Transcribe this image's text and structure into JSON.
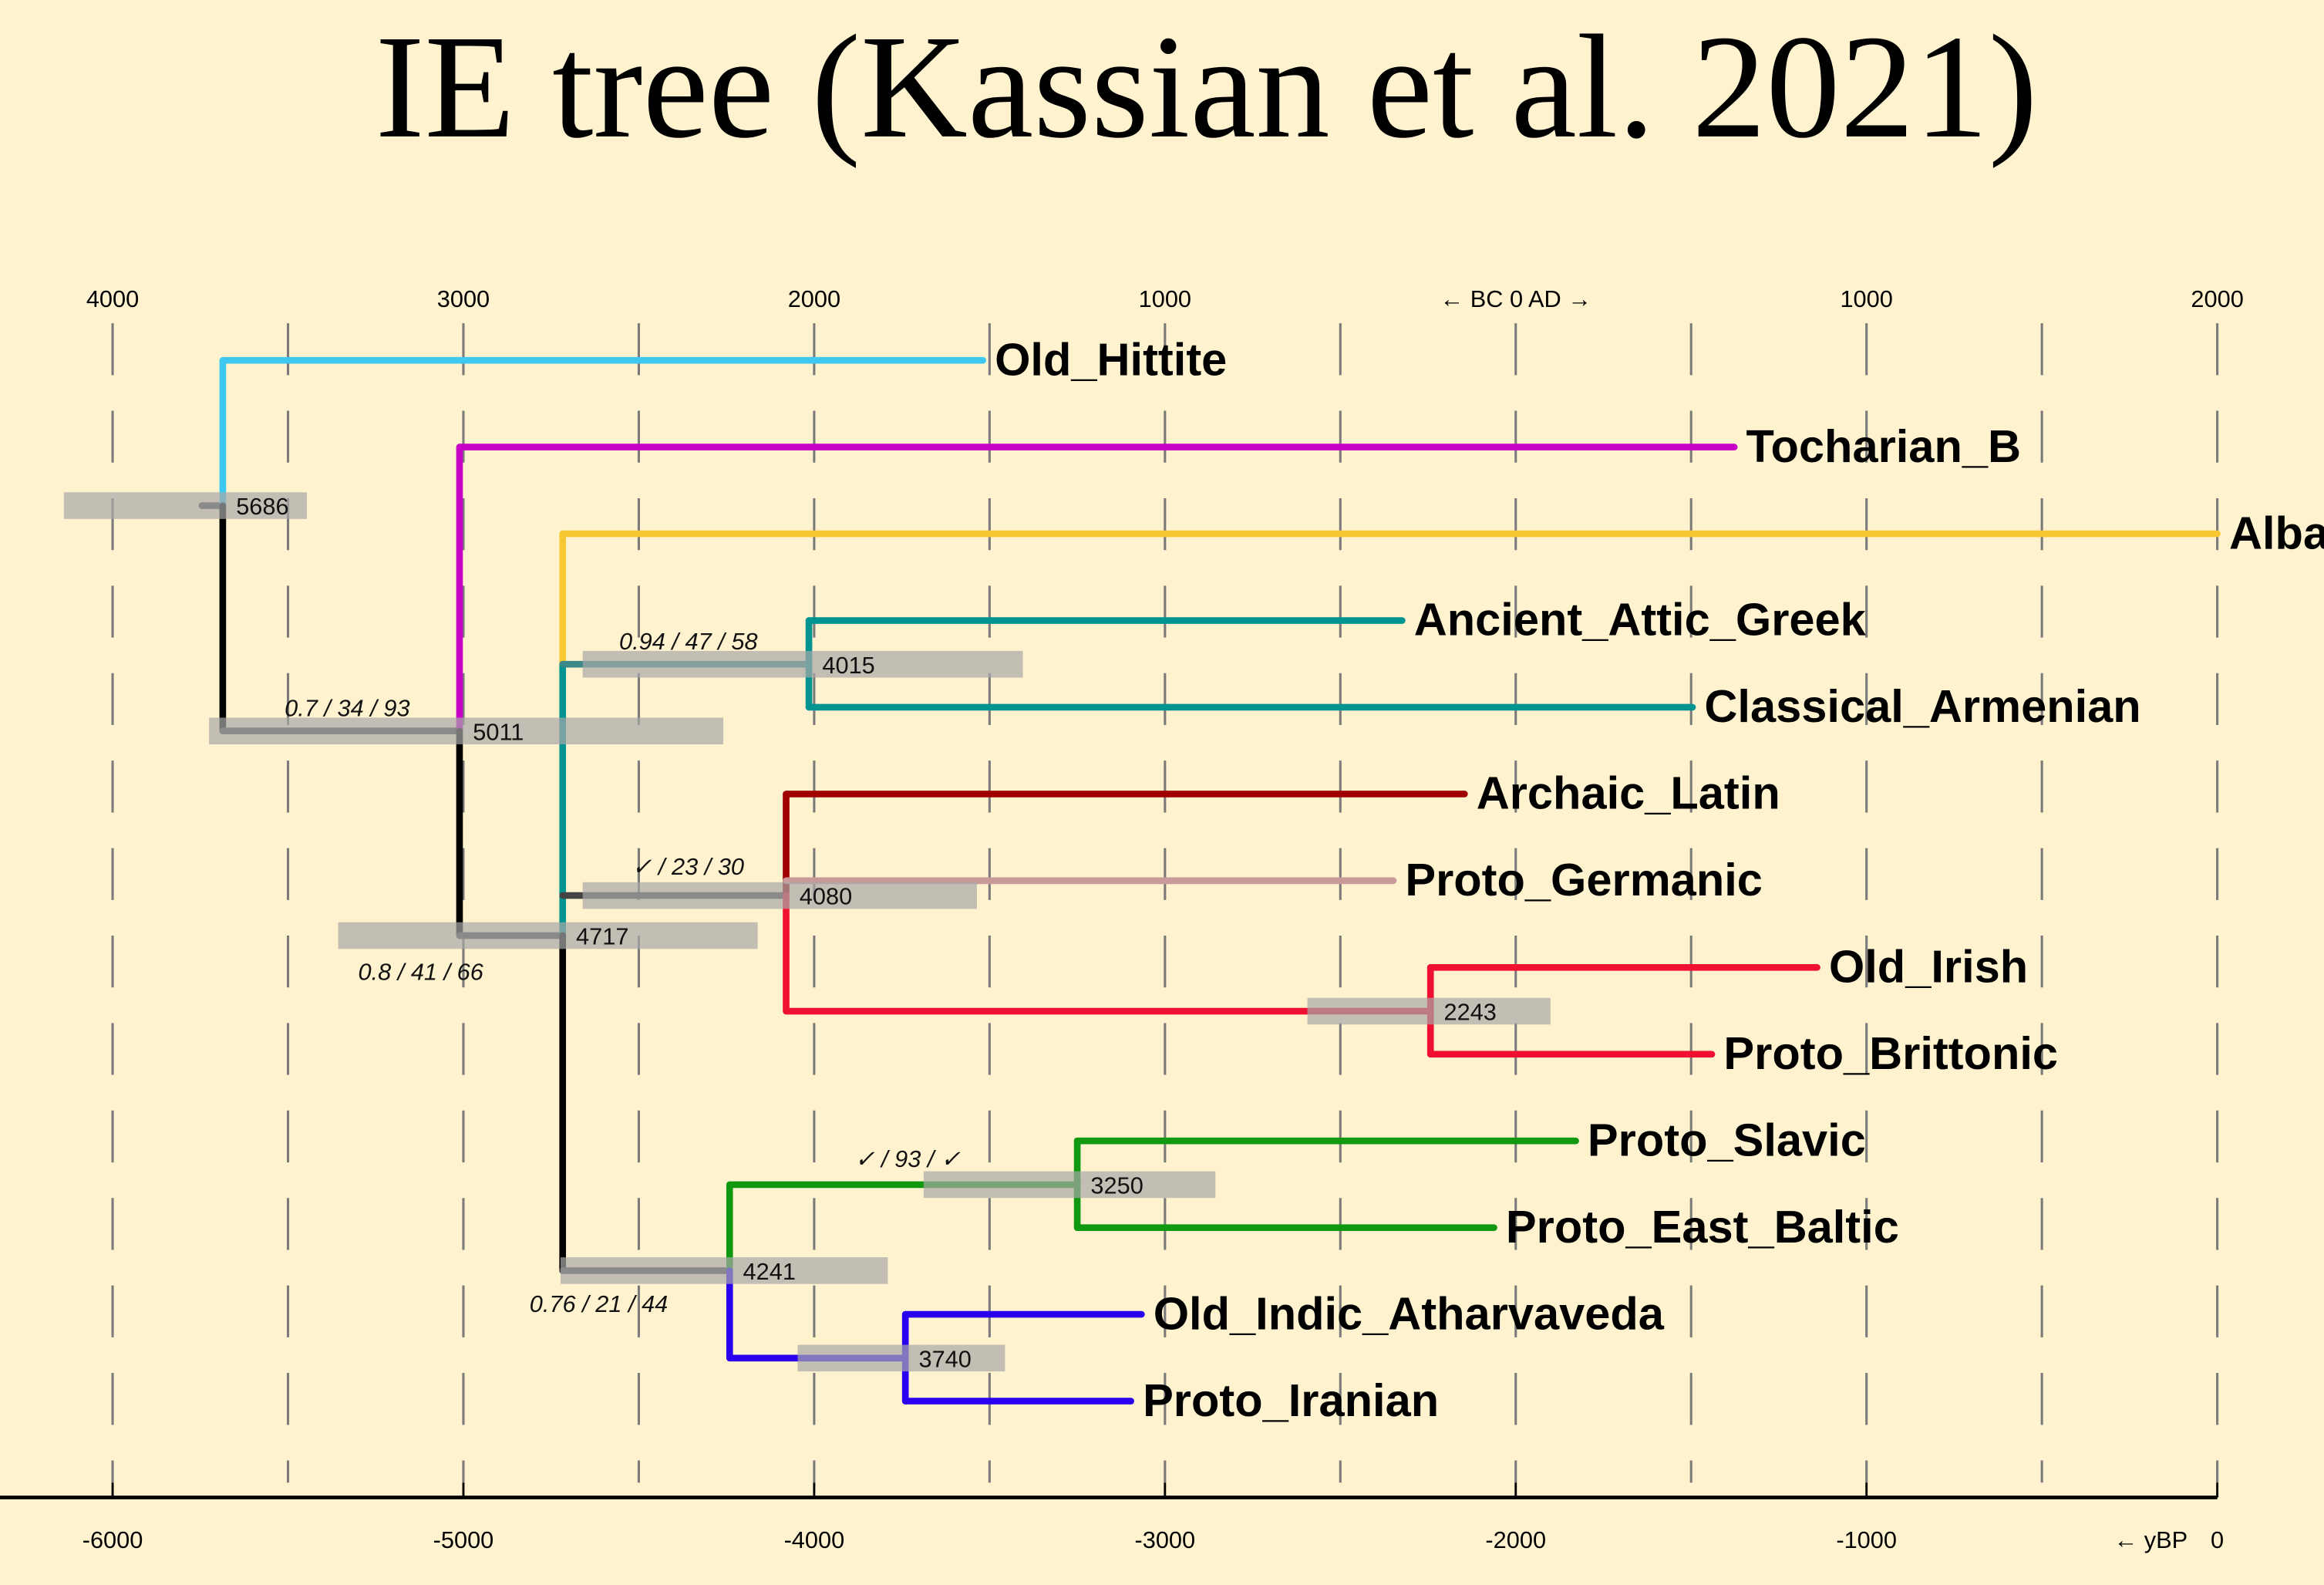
{
  "chart_data": {
    "type": "tree",
    "title": "IE tree (Kassian et al. 2021)",
    "x_axis_bottom": {
      "ticks": [
        -6000,
        -5000,
        -4000,
        -3000,
        -2000,
        -1000,
        0
      ],
      "tick_labels": [
        "-6000",
        "-5000",
        "-4000",
        "-3000",
        "-2000",
        "-1000",
        "0"
      ],
      "label": "← yBP"
    },
    "x_axis_top": {
      "labels": [
        {
          "at": -6000,
          "text": "4000"
        },
        {
          "at": -5000,
          "text": "3000"
        },
        {
          "at": -4000,
          "text": "2000"
        },
        {
          "at": -3000,
          "text": "1000"
        },
        {
          "at": -2000,
          "text": "←  BC    0    AD  →"
        },
        {
          "at": -1000,
          "text": "1000"
        },
        {
          "at": 0,
          "text": "2000"
        }
      ]
    },
    "xlim": [
      -6300,
      300
    ],
    "grid": "dashed vertical every 500 years",
    "leaves": [
      {
        "name": "Old_Hittite",
        "tip": -3519,
        "color": "#3ec8f0"
      },
      {
        "name": "Tocharian_B",
        "tip": -1377,
        "color": "#c800c8"
      },
      {
        "name": "Albanian",
        "tip": 0,
        "color": "#f8c832"
      },
      {
        "name": "Ancient_Attic_Greek",
        "tip": -2324,
        "color": "#009490"
      },
      {
        "name": "Classical_Armenian",
        "tip": -1496,
        "color": "#009490"
      },
      {
        "name": "Archaic_Latin",
        "tip": -2146,
        "color": "#a00000"
      },
      {
        "name": "Proto_Germanic",
        "tip": -2349,
        "color": "#c89a9a"
      },
      {
        "name": "Old_Irish",
        "tip": -1141,
        "color": "#f01030"
      },
      {
        "name": "Proto_Brittonic",
        "tip": -1441,
        "color": "#f01030"
      },
      {
        "name": "Proto_Slavic",
        "tip": -1829,
        "color": "#109810"
      },
      {
        "name": "Proto_East_Baltic",
        "tip": -2062,
        "color": "#109810"
      },
      {
        "name": "Old_Indic_Atharvaveda",
        "tip": -3067,
        "color": "#2a00f0"
      },
      {
        "name": "Proto_Iranian",
        "tip": -3097,
        "color": "#2a00f0"
      }
    ],
    "nodes": [
      {
        "id": "n5686",
        "age": 5686,
        "label": "5686",
        "hpd": [
          -6139,
          -5446
        ],
        "support": ""
      },
      {
        "id": "n5011",
        "age": 5011,
        "label": "5011",
        "hpd": [
          -5725,
          -4259
        ],
        "support": "0.7 / 34 / 93"
      },
      {
        "id": "n4717",
        "age": 4717,
        "label": "4717",
        "hpd": [
          -5357,
          -4161
        ],
        "support": "0.8 / 41 / 66"
      },
      {
        "id": "n4015",
        "age": 4015,
        "label": "4015",
        "hpd": [
          -4660,
          -3405
        ],
        "support": "0.94 / 47 / 58"
      },
      {
        "id": "n4080",
        "age": 4080,
        "label": "4080",
        "hpd": [
          -4660,
          -3536
        ],
        "support": "✓ / 23 / 30"
      },
      {
        "id": "n2243",
        "age": 2243,
        "label": "2243",
        "hpd": [
          -2594,
          -1901
        ],
        "support": ""
      },
      {
        "id": "n3250",
        "age": 3250,
        "label": "3250",
        "hpd": [
          -3688,
          -2856
        ],
        "support": "✓ / 93 / ✓"
      },
      {
        "id": "n4241",
        "age": 4241,
        "label": "4241",
        "hpd": [
          -4723,
          -3790
        ],
        "support": "0.76 / 21 / 44"
      },
      {
        "id": "n3740",
        "age": 3740,
        "label": "3740",
        "hpd": [
          -4047,
          -3456
        ],
        "support": ""
      }
    ],
    "colors": {
      "background": "#fff2cf",
      "backbone": "#000000",
      "stem": "#444444",
      "hpd_bar": "#a8a8a8"
    }
  }
}
